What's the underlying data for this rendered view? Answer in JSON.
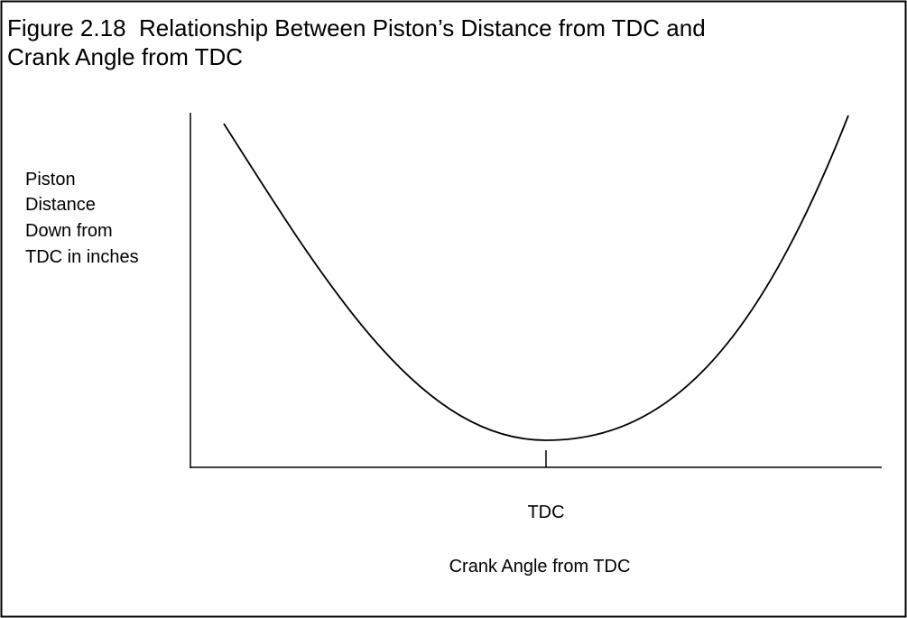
{
  "figure": {
    "title_lines": [
      "Figure 2.18  Relationship Between Piston’s Distance from TDC and",
      "Crank Angle from TDC"
    ],
    "y_label_lines": [
      "Piston",
      "Distance",
      "Down from",
      "TDC in inches"
    ],
    "x_tick_label": "TDC",
    "x_label": "Crank Angle from TDC"
  }
}
